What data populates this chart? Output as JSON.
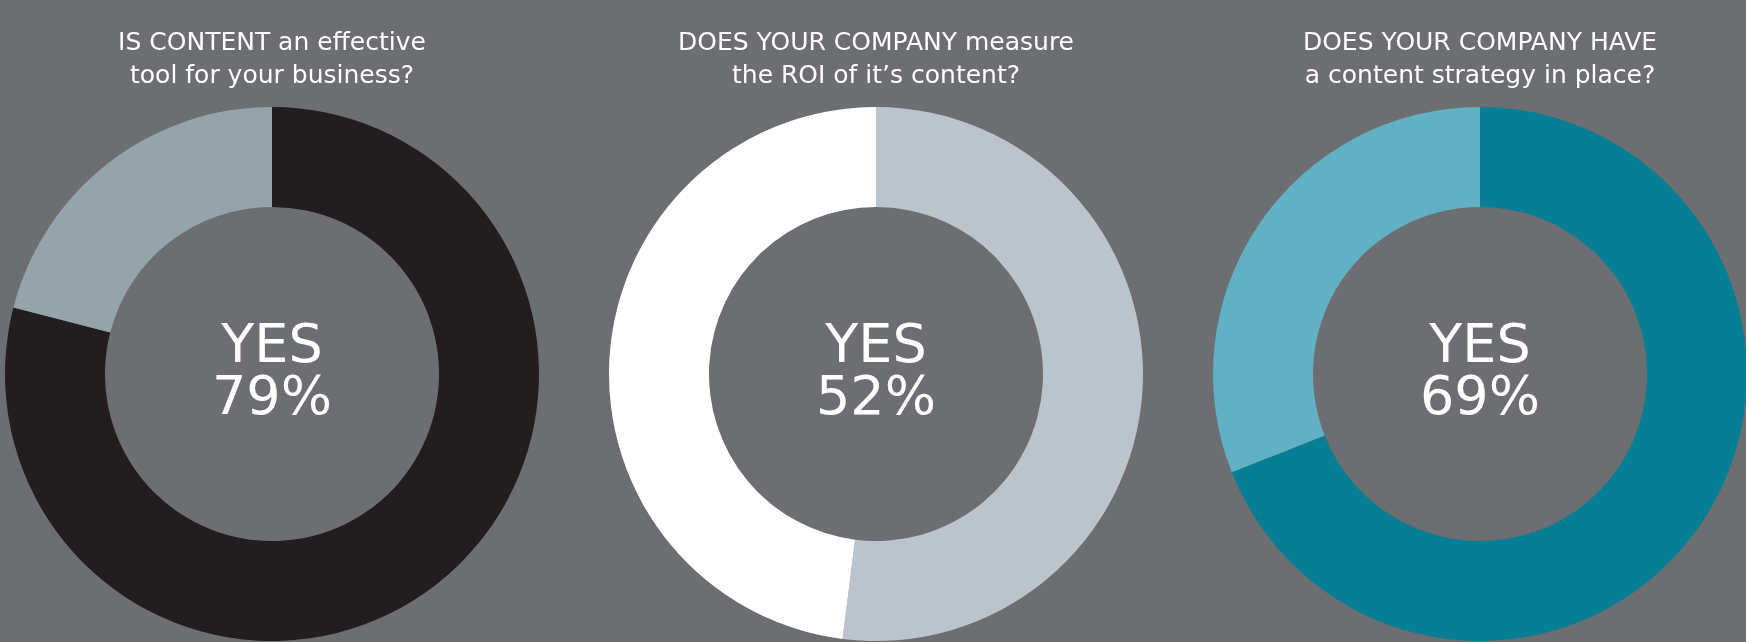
{
  "chart_data": [
    {
      "type": "donut",
      "title": "IS CONTENT an effective\ntool for your business?",
      "categories": [
        "YES",
        null
      ],
      "values": [
        79,
        21
      ],
      "value_labels": [
        "79%",
        null
      ],
      "colors": [
        "#221e1f",
        "#95a3aa"
      ],
      "legend": false
    },
    {
      "type": "donut",
      "title": "DOES YOUR COMPANY measure\nthe ROI of it’s content?",
      "categories": [
        "YES",
        null
      ],
      "values": [
        52,
        48
      ],
      "value_labels": [
        "52%",
        null
      ],
      "colors": [
        "#bcc4cb",
        "#ffffff"
      ],
      "legend": false
    },
    {
      "type": "donut",
      "title": "DOES YOUR COMPANY HAVE\na content strategy in place?",
      "categories": [
        "YES",
        null
      ],
      "values": [
        69,
        31
      ],
      "value_labels": [
        "69%",
        null
      ],
      "colors": [
        "#067f94",
        "#62b0c3"
      ],
      "legend": false
    }
  ]
}
